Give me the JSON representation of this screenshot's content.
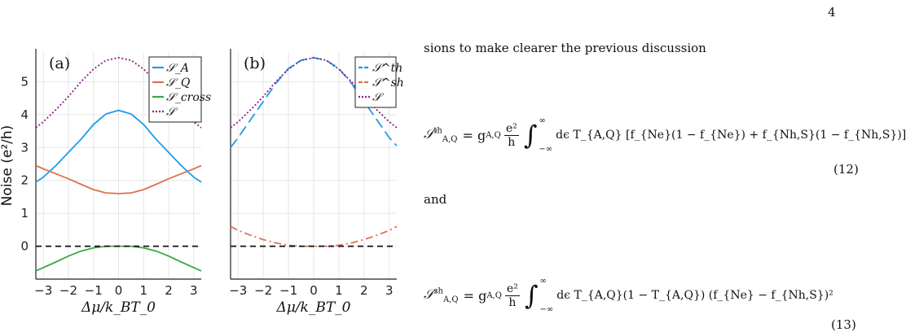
{
  "page_number": "4",
  "text": {
    "intro": "sions to make clearer the previous discussion",
    "and": "and"
  },
  "equations": {
    "eq12_number": "(12)",
    "eq13_number": "(13)",
    "eq12": {
      "lhs": "𝒮",
      "sup": "th",
      "sub": "A,Q",
      "coef": "= g",
      "coef_sub": "A,Q",
      "frac_num": "e²",
      "frac_den": "h",
      "lim_top": "∞",
      "lim_bot": "−∞",
      "body": "dϵ T_{A,Q} [f_{Ne}(1 − f_{Ne}) + f_{Nh,S}(1 − f_{Nh,S})]"
    },
    "eq13": {
      "lhs": "𝒮",
      "sup": "sh",
      "sub": "A,Q",
      "coef": "= g",
      "coef_sub": "A,Q",
      "frac_num": "e²",
      "frac_den": "h",
      "lim_top": "∞",
      "lim_bot": "−∞",
      "body": "dϵ T_{A,Q}(1 − T_{A,Q}) (f_{Ne} − f_{Nh,S})²"
    }
  },
  "colors": {
    "blue": "#1f9be9",
    "orange": "#e0714f",
    "green": "#3aa84a",
    "purple": "#8a1c8a",
    "black": "#111111",
    "grid": "#e6e6e6"
  },
  "chart_data": [
    {
      "type": "line",
      "panel_label": "(a)",
      "xlabel": "Δμ/k_BT_0",
      "ylabel": "Noise (e²/h)",
      "xlim": [
        -3.3,
        3.3
      ],
      "ylim": [
        -1.0,
        5.9
      ],
      "xticks": [
        "−3",
        "−2",
        "−1",
        "0",
        "1",
        "2",
        "3"
      ],
      "yticks": [
        "0",
        "1",
        "2",
        "3",
        "4",
        "5"
      ],
      "grid": true,
      "legend": "top-right",
      "x": [
        -3.3,
        -3,
        -2.5,
        -2,
        -1.5,
        -1,
        -0.5,
        0,
        0.5,
        1,
        1.5,
        2,
        2.5,
        3,
        3.3
      ],
      "series": [
        {
          "name": "𝒮_A",
          "style": "solid",
          "color": "#1f9be9",
          "values": [
            1.95,
            2.1,
            2.45,
            2.85,
            3.25,
            3.7,
            4.02,
            4.13,
            4.02,
            3.7,
            3.25,
            2.85,
            2.45,
            2.1,
            1.95
          ]
        },
        {
          "name": "𝒮_Q",
          "style": "solid",
          "color": "#e0714f",
          "values": [
            2.45,
            2.35,
            2.2,
            2.05,
            1.88,
            1.72,
            1.62,
            1.6,
            1.62,
            1.72,
            1.88,
            2.05,
            2.2,
            2.35,
            2.45
          ]
        },
        {
          "name": "𝒮_cross",
          "style": "solid",
          "color": "#3aa84a",
          "values": [
            -0.75,
            -0.65,
            -0.48,
            -0.3,
            -0.15,
            -0.05,
            0.0,
            0.0,
            0.0,
            -0.05,
            -0.15,
            -0.3,
            -0.48,
            -0.65,
            -0.75
          ]
        },
        {
          "name": "𝒮",
          "style": "dotted",
          "color": "#8a1c8a",
          "values": [
            3.6,
            3.78,
            4.15,
            4.55,
            5.0,
            5.38,
            5.65,
            5.73,
            5.65,
            5.38,
            5.0,
            4.55,
            4.15,
            3.78,
            3.6
          ]
        },
        {
          "name": "",
          "style": "dashed",
          "color": "#111111",
          "values": [
            0,
            0,
            0,
            0,
            0,
            0,
            0,
            0,
            0,
            0,
            0,
            0,
            0,
            0,
            0
          ]
        }
      ]
    },
    {
      "type": "line",
      "panel_label": "(b)",
      "xlabel": "Δμ/k_BT_0",
      "xlim": [
        -3.3,
        3.3
      ],
      "ylim": [
        -1.0,
        5.9
      ],
      "xticks": [
        "−3",
        "−2",
        "−1",
        "0",
        "1",
        "2",
        "3"
      ],
      "grid": true,
      "legend": "top-right",
      "x": [
        -3.3,
        -3,
        -2.5,
        -2,
        -1.5,
        -1,
        -0.5,
        0,
        0.5,
        1,
        1.5,
        2,
        2.5,
        3,
        3.3
      ],
      "series": [
        {
          "name": "𝒮^th",
          "style": "longdash",
          "color": "#1f9be9",
          "values": [
            3.0,
            3.3,
            3.85,
            4.4,
            4.95,
            5.4,
            5.65,
            5.73,
            5.65,
            5.4,
            4.95,
            4.4,
            3.85,
            3.3,
            3.05
          ]
        },
        {
          "name": "𝒮^sh",
          "style": "dashdot",
          "color": "#e0714f",
          "values": [
            0.6,
            0.48,
            0.33,
            0.2,
            0.1,
            0.03,
            0.0,
            0.0,
            0.0,
            0.03,
            0.1,
            0.2,
            0.33,
            0.48,
            0.6
          ]
        },
        {
          "name": "𝒮",
          "style": "dotted",
          "color": "#8a1c8a",
          "values": [
            3.6,
            3.78,
            4.15,
            4.55,
            5.0,
            5.38,
            5.65,
            5.73,
            5.65,
            5.38,
            5.0,
            4.55,
            4.15,
            3.78,
            3.6
          ]
        },
        {
          "name": "",
          "style": "dashed",
          "color": "#111111",
          "values": [
            0,
            0,
            0,
            0,
            0,
            0,
            0,
            0,
            0,
            0,
            0,
            0,
            0,
            0,
            0
          ]
        }
      ]
    }
  ]
}
